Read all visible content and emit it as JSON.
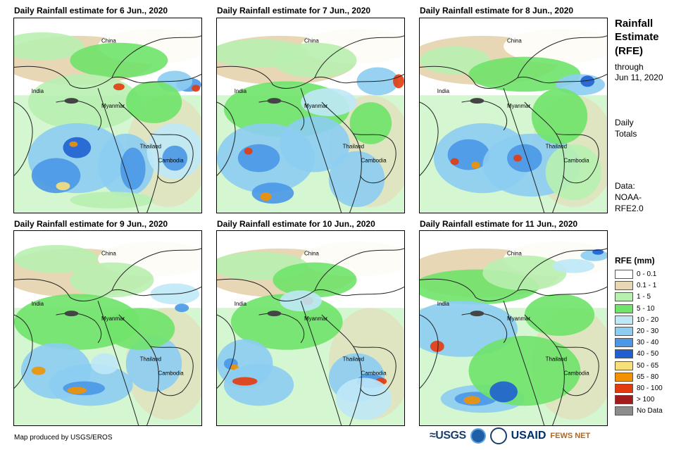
{
  "panels": [
    {
      "title": "Daily Rainfall estimate for 6 Jun., 2020"
    },
    {
      "title": "Daily Rainfall estimate for 7 Jun., 2020"
    },
    {
      "title": "Daily Rainfall estimate for 8 Jun., 2020"
    },
    {
      "title": "Daily Rainfall estimate for 9 Jun., 2020"
    },
    {
      "title": "Daily Rainfall estimate for 10 Jun., 2020"
    },
    {
      "title": "Daily Rainfall estimate for 11 Jun., 2020"
    }
  ],
  "map_labels": {
    "china": "China",
    "india": "India",
    "myanmar": "Myanmar",
    "thailand": "Thailand",
    "cambodia": "Cambodia"
  },
  "sidebar": {
    "title_line1": "Rainfall",
    "title_line2": "Estimate",
    "title_line3": "(RFE)",
    "through": "through",
    "through_date": "Jun 11, 2020",
    "period_line1": "Daily",
    "period_line2": "Totals",
    "data_line1": "Data:",
    "data_line2": "NOAA-",
    "data_line3": "RFE2.0"
  },
  "legend": {
    "title": "RFE (mm)",
    "items": [
      {
        "label": "0 - 0.1",
        "color": "#ffffff"
      },
      {
        "label": "0.1 - 1",
        "color": "#e8d7b5"
      },
      {
        "label": "1 - 5",
        "color": "#b8f0b0"
      },
      {
        "label": "5 - 10",
        "color": "#6fe36a"
      },
      {
        "label": "10 - 20",
        "color": "#bfe8f7"
      },
      {
        "label": "20 - 30",
        "color": "#8ccdf2"
      },
      {
        "label": "30 - 40",
        "color": "#4a97e6"
      },
      {
        "label": "40 - 50",
        "color": "#1f5fd0"
      },
      {
        "label": "50 - 65",
        "color": "#f7e07a"
      },
      {
        "label": "65 - 80",
        "color": "#f39200"
      },
      {
        "label": "80 - 100",
        "color": "#e33b0e"
      },
      {
        "label": "> 100",
        "color": "#a31c1c"
      },
      {
        "label": "No Data",
        "color": "#8c8c8c"
      }
    ]
  },
  "footer": {
    "credit": "Map produced by USGS/EROS",
    "logo_usgs": "≈USGS",
    "logo_usaid": "USAID",
    "logo_fews": "FEWS NET"
  }
}
